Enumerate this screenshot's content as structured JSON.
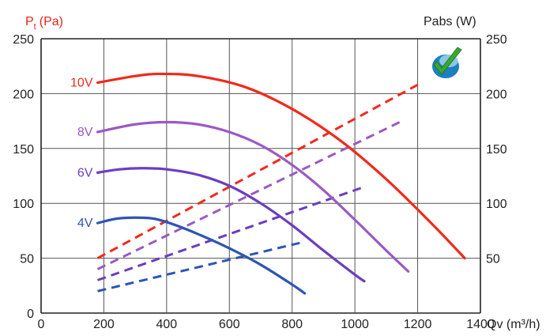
{
  "chart_data": {
    "type": "line",
    "x_axis": {
      "label": "Qv (m³/h)",
      "range": [
        0,
        1400
      ],
      "ticks": [
        0,
        200,
        400,
        600,
        800,
        1000,
        1200,
        1400
      ]
    },
    "y_left": {
      "label": "Pt (Pa)",
      "label_main": "P",
      "label_sub": "t",
      "label_unit": "(Pa)",
      "range": [
        0,
        250
      ],
      "ticks": [
        0,
        50,
        100,
        150,
        200,
        250
      ],
      "color": "#e8231b"
    },
    "y_right": {
      "label": "Pabs (W)",
      "range": [
        0,
        250
      ],
      "ticks": [
        50,
        100,
        150,
        200,
        250
      ],
      "color": "#222222"
    },
    "grid": true,
    "pressure_series": [
      {
        "name": "10V",
        "color": "#f02a1c",
        "x": [
          180,
          300,
          380,
          500,
          650,
          800,
          950,
          1100,
          1250,
          1350
        ],
        "y": [
          210,
          216,
          218,
          216,
          206,
          186,
          158,
          122,
          80,
          50
        ]
      },
      {
        "name": "8V",
        "color": "#9b59c4",
        "x": [
          180,
          300,
          400,
          500,
          600,
          700,
          800,
          900,
          1000,
          1100,
          1170
        ],
        "y": [
          165,
          172,
          174,
          172,
          165,
          153,
          135,
          112,
          85,
          57,
          38
        ]
      },
      {
        "name": "6V",
        "color": "#6a3fbf",
        "x": [
          180,
          250,
          320,
          400,
          500,
          600,
          700,
          800,
          900,
          1000,
          1030
        ],
        "y": [
          128,
          131,
          132,
          131,
          126,
          116,
          100,
          80,
          57,
          35,
          29
        ]
      },
      {
        "name": "4V",
        "color": "#2d56b2",
        "x": [
          180,
          240,
          300,
          360,
          420,
          500,
          600,
          700,
          800,
          840
        ],
        "y": [
          82,
          86,
          87,
          86,
          81,
          72,
          59,
          44,
          26,
          18
        ]
      }
    ],
    "power_series": [
      {
        "color": "#f02a1c",
        "x": [
          180,
          1200
        ],
        "y": [
          50,
          208
        ]
      },
      {
        "color": "#9b59c4",
        "x": [
          180,
          1150
        ],
        "y": [
          40,
          175
        ]
      },
      {
        "color": "#6a3fbf",
        "x": [
          180,
          1030
        ],
        "y": [
          30,
          115
        ]
      },
      {
        "color": "#2d56b2",
        "x": [
          180,
          840
        ],
        "y": [
          20,
          65
        ]
      }
    ]
  }
}
